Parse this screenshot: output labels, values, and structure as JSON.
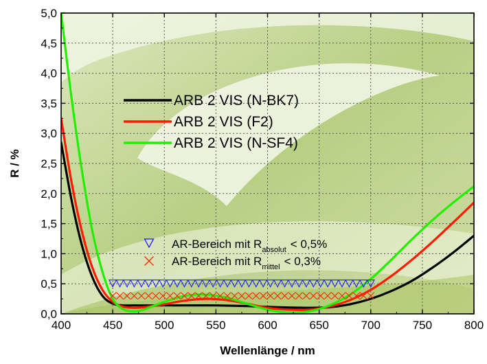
{
  "colors": {
    "nbk7": "#000000",
    "f2": "#ff1a00",
    "nsf4": "#22ee00",
    "absolut_marker": "#1a1aff",
    "mittel_marker": "#ff2200",
    "bg_light": "#eef3dc",
    "bg_dark": "#9fbf56"
  },
  "chart_data": {
    "type": "line",
    "xlabel": "Wellenlänge / nm",
    "ylabel": "R / %",
    "xlim": [
      400,
      800
    ],
    "ylim": [
      0,
      5
    ],
    "grid": true,
    "legend_position": "top-center",
    "x_ticks": [
      "400",
      "450",
      "500",
      "550",
      "600",
      "650",
      "700",
      "750",
      "800"
    ],
    "y_ticks": [
      "0,0",
      "0,5",
      "1,0",
      "1,5",
      "2,0",
      "2,5",
      "3,0",
      "3,5",
      "4,0",
      "4,5",
      "5,0"
    ],
    "series": [
      {
        "name": "ARB 2 VIS (N-BK7)",
        "color": "#000000",
        "x": [
          400,
          410,
          420,
          430,
          440,
          450,
          460,
          470,
          480,
          500,
          520,
          550,
          580,
          610,
          640,
          660,
          680,
          700,
          720,
          740,
          760,
          780,
          800
        ],
        "y": [
          2.85,
          1.9,
          1.15,
          0.62,
          0.3,
          0.17,
          0.14,
          0.14,
          0.14,
          0.14,
          0.14,
          0.14,
          0.13,
          0.11,
          0.1,
          0.11,
          0.16,
          0.25,
          0.38,
          0.55,
          0.77,
          1.02,
          1.3
        ]
      },
      {
        "name": "ARB 2 VIS (F2)",
        "color": "#ff1a00",
        "x": [
          400,
          410,
          420,
          430,
          440,
          450,
          460,
          470,
          480,
          500,
          520,
          540,
          560,
          580,
          600,
          620,
          640,
          660,
          680,
          700,
          720,
          740,
          760,
          780,
          800
        ],
        "y": [
          3.25,
          2.2,
          1.38,
          0.78,
          0.4,
          0.2,
          0.12,
          0.1,
          0.11,
          0.16,
          0.22,
          0.25,
          0.23,
          0.17,
          0.1,
          0.07,
          0.07,
          0.12,
          0.23,
          0.4,
          0.63,
          0.9,
          1.2,
          1.52,
          1.85
        ]
      },
      {
        "name": "ARB 2 VIS (N-SF4)",
        "color": "#22ee00",
        "x": [
          400,
          410,
          420,
          430,
          440,
          450,
          460,
          470,
          480,
          500,
          520,
          540,
          560,
          580,
          600,
          620,
          640,
          660,
          680,
          700,
          720,
          740,
          760,
          780,
          800
        ],
        "y": [
          5.0,
          3.6,
          2.4,
          1.4,
          0.7,
          0.25,
          0.08,
          0.04,
          0.07,
          0.2,
          0.3,
          0.32,
          0.27,
          0.17,
          0.07,
          0.02,
          0.04,
          0.14,
          0.32,
          0.58,
          0.9,
          1.24,
          1.56,
          1.85,
          2.12
        ]
      }
    ],
    "markers": [
      {
        "label": "AR-Bereich mit R",
        "subscript": "absolut",
        "condition": "< 0,5%",
        "symbol": "triangle-down",
        "color": "#1a1aff",
        "x_start": 450,
        "x_end": 700,
        "y": 0.5
      },
      {
        "label": "AR-Bereich mit R",
        "subscript": "mittel",
        "condition": "< 0,3%",
        "symbol": "x",
        "color": "#ff2200",
        "x_start": 450,
        "x_end": 700,
        "y": 0.3
      }
    ]
  }
}
